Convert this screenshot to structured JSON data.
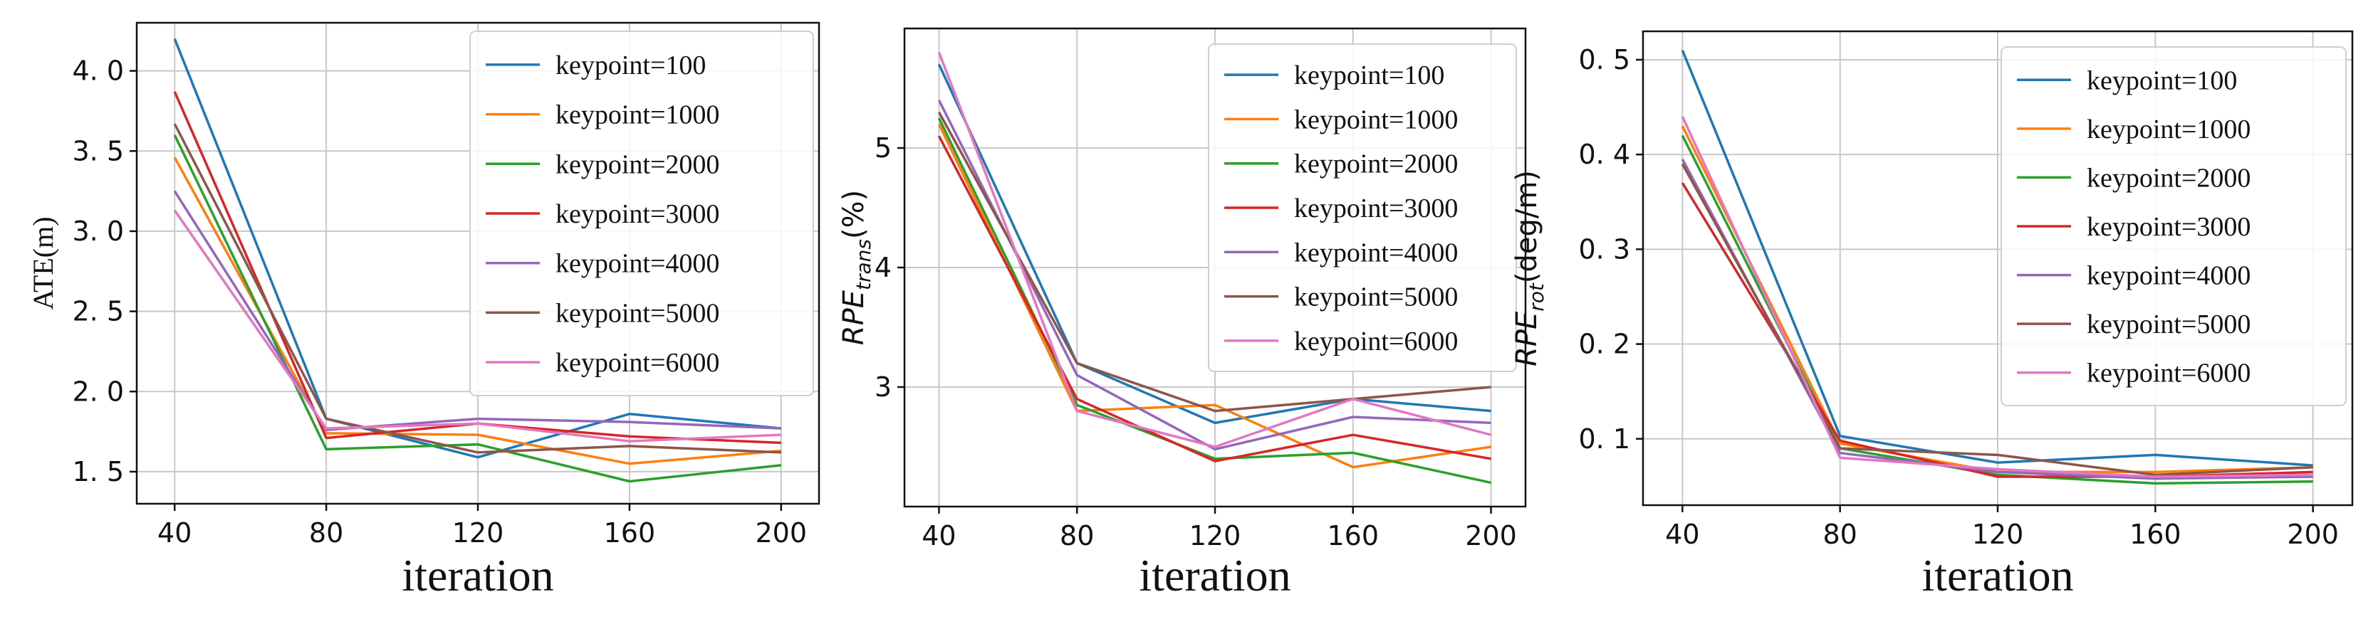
{
  "series_names": [
    "keypoint=100",
    "keypoint=1000",
    "keypoint=2000",
    "keypoint=3000",
    "keypoint=4000",
    "keypoint=5000",
    "keypoint=6000"
  ],
  "colors": [
    "#1f77b4",
    "#ff7f0e",
    "#2ca02c",
    "#d62728",
    "#9467bd",
    "#8c564b",
    "#e377c2"
  ],
  "chart_data": [
    {
      "type": "line",
      "xlabel": "iteration",
      "ylabel": "ATE(m)",
      "x": [
        40,
        80,
        120,
        160,
        200
      ],
      "xlim": [
        30,
        210
      ],
      "ylim": [
        1.3,
        4.3
      ],
      "yticks": [
        1.5,
        2.0,
        2.5,
        3.0,
        3.5,
        4.0
      ],
      "ytick_labels": [
        "1. 5",
        "2. 0",
        "2. 5",
        "3. 0",
        "3. 5",
        "4. 0"
      ],
      "series": [
        {
          "name": "keypoint=100",
          "values": [
            4.2,
            1.83,
            1.59,
            1.86,
            1.77
          ]
        },
        {
          "name": "keypoint=1000",
          "values": [
            3.46,
            1.74,
            1.73,
            1.55,
            1.63
          ]
        },
        {
          "name": "keypoint=2000",
          "values": [
            3.6,
            1.64,
            1.67,
            1.44,
            1.54
          ]
        },
        {
          "name": "keypoint=3000",
          "values": [
            3.87,
            1.71,
            1.8,
            1.72,
            1.68
          ]
        },
        {
          "name": "keypoint=4000",
          "values": [
            3.25,
            1.76,
            1.83,
            1.81,
            1.77
          ]
        },
        {
          "name": "keypoint=5000",
          "values": [
            3.67,
            1.83,
            1.62,
            1.66,
            1.62
          ]
        },
        {
          "name": "keypoint=6000",
          "values": [
            3.13,
            1.77,
            1.8,
            1.69,
            1.73
          ]
        }
      ]
    },
    {
      "type": "line",
      "xlabel": "iteration",
      "ylabel_main": "RPE",
      "ylabel_sub": "trans",
      "ylabel_suffix": "(%)",
      "x": [
        40,
        80,
        120,
        160,
        200
      ],
      "xlim": [
        30,
        210
      ],
      "ylim": [
        2.0,
        6.0
      ],
      "yticks": [
        3,
        4,
        5
      ],
      "ytick_labels": [
        "3",
        "4",
        "5"
      ],
      "series": [
        {
          "name": "keypoint=100",
          "values": [
            5.7,
            3.2,
            2.7,
            2.9,
            2.8
          ]
        },
        {
          "name": "keypoint=1000",
          "values": [
            5.2,
            2.8,
            2.85,
            2.33,
            2.5
          ]
        },
        {
          "name": "keypoint=2000",
          "values": [
            5.25,
            2.85,
            2.4,
            2.45,
            2.2
          ]
        },
        {
          "name": "keypoint=3000",
          "values": [
            5.1,
            2.9,
            2.38,
            2.6,
            2.4
          ]
        },
        {
          "name": "keypoint=4000",
          "values": [
            5.4,
            3.1,
            2.48,
            2.75,
            2.7
          ]
        },
        {
          "name": "keypoint=5000",
          "values": [
            5.3,
            3.2,
            2.8,
            2.9,
            3.0
          ]
        },
        {
          "name": "keypoint=6000",
          "values": [
            5.8,
            2.8,
            2.5,
            2.9,
            2.6
          ]
        }
      ]
    },
    {
      "type": "line",
      "xlabel": "iteration",
      "ylabel_main": "RPE",
      "ylabel_sub": "rot",
      "ylabel_suffix": "(deg/m)",
      "x": [
        40,
        80,
        120,
        160,
        200
      ],
      "xlim": [
        30,
        210
      ],
      "ylim": [
        0.03,
        0.53
      ],
      "yticks": [
        0.1,
        0.2,
        0.3,
        0.4,
        0.5
      ],
      "ytick_labels": [
        "0. 1",
        "0. 2",
        "0. 3",
        "0. 4",
        "0. 5"
      ],
      "series": [
        {
          "name": "keypoint=100",
          "values": [
            0.51,
            0.103,
            0.075,
            0.083,
            0.072
          ]
        },
        {
          "name": "keypoint=1000",
          "values": [
            0.43,
            0.095,
            0.065,
            0.065,
            0.07
          ]
        },
        {
          "name": "keypoint=2000",
          "values": [
            0.42,
            0.09,
            0.062,
            0.053,
            0.055
          ]
        },
        {
          "name": "keypoint=3000",
          "values": [
            0.37,
            0.098,
            0.06,
            0.06,
            0.065
          ]
        },
        {
          "name": "keypoint=4000",
          "values": [
            0.395,
            0.085,
            0.065,
            0.058,
            0.06
          ]
        },
        {
          "name": "keypoint=5000",
          "values": [
            0.39,
            0.09,
            0.083,
            0.062,
            0.07
          ]
        },
        {
          "name": "keypoint=6000",
          "values": [
            0.44,
            0.08,
            0.068,
            0.06,
            0.062
          ]
        }
      ]
    }
  ]
}
